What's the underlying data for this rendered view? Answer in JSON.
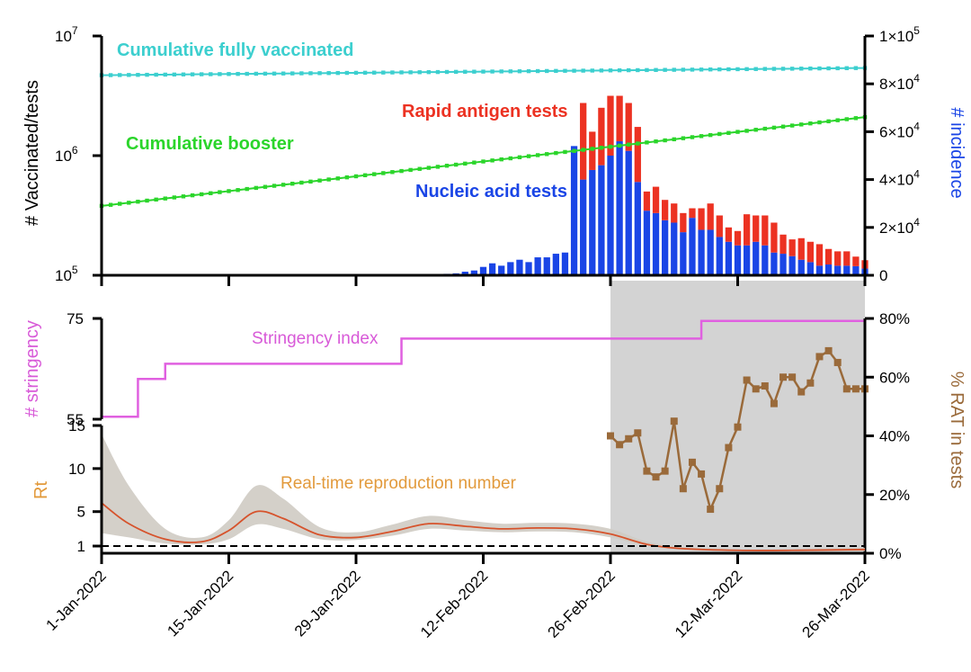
{
  "chart_data": [
    {
      "type": "bar",
      "panel": "top",
      "ylabel_left": "# Vaccinated/tests",
      "ylabel_right": "# incidence",
      "left_axis": {
        "scale": "log",
        "range": [
          100000,
          10000000
        ],
        "ticks": [
          "10^7",
          "10^6",
          "10^5"
        ]
      },
      "right_axis": {
        "scale": "linear",
        "range": [
          0,
          100000
        ],
        "ticks": [
          "1×10^5",
          "8×10^4",
          "6×10^4",
          "4×10^4",
          "2×10^4",
          "0"
        ]
      },
      "annotations": {
        "fully_vaccinated": "Cumulative fully vaccinated",
        "booster": "Cumulative booster",
        "rat": "Rapid antigen tests",
        "nat": "Nucleic acid tests"
      },
      "colors": {
        "fully_vaccinated": "#3ccfcf",
        "booster": "#2bd52b",
        "rat": "#ec3222",
        "nat": "#1a45e6"
      },
      "fully_vaccinated": {
        "start": 4700000,
        "end": 5400000
      },
      "booster": {
        "start": 380000,
        "end": 2100000
      },
      "bar_dates": [
        "2022-02-05",
        "2022-02-06",
        "2022-02-07",
        "2022-02-08",
        "2022-02-09",
        "2022-02-10",
        "2022-02-11",
        "2022-02-12",
        "2022-02-13",
        "2022-02-14",
        "2022-02-15",
        "2022-02-16",
        "2022-02-17",
        "2022-02-18",
        "2022-02-19",
        "2022-02-20",
        "2022-02-21",
        "2022-02-22",
        "2022-02-23",
        "2022-02-24",
        "2022-02-25",
        "2022-02-26",
        "2022-02-27",
        "2022-02-28",
        "2022-03-01",
        "2022-03-02",
        "2022-03-03",
        "2022-03-04",
        "2022-03-05",
        "2022-03-06",
        "2022-03-07",
        "2022-03-08",
        "2022-03-09",
        "2022-03-10",
        "2022-03-11",
        "2022-03-12",
        "2022-03-13",
        "2022-03-14",
        "2022-03-15",
        "2022-03-16",
        "2022-03-17",
        "2022-03-18",
        "2022-03-19",
        "2022-03-20",
        "2022-03-21",
        "2022-03-22",
        "2022-03-23",
        "2022-03-24",
        "2022-03-25",
        "2022-03-26"
      ],
      "nucleic_acid_tests": [
        300,
        400,
        500,
        600,
        800,
        1500,
        2000,
        3500,
        5000,
        4000,
        5500,
        6500,
        5500,
        7500,
        7500,
        9000,
        9500,
        54000,
        40000,
        44000,
        46000,
        50000,
        56000,
        52000,
        39000,
        27000,
        26000,
        23000,
        22000,
        18000,
        24000,
        19000,
        19000,
        16000,
        14000,
        12500,
        12500,
        14000,
        12500,
        9500,
        9000,
        8000,
        6500,
        5500,
        4000,
        4500,
        4000,
        4000,
        3800,
        2800
      ],
      "rapid_antigen_tests": [
        0,
        0,
        0,
        0,
        0,
        0,
        0,
        0,
        0,
        0,
        0,
        0,
        0,
        0,
        0,
        0,
        0,
        0,
        32000,
        16000,
        24000,
        25000,
        19000,
        20000,
        23000,
        8000,
        11000,
        8500,
        8000,
        8000,
        4000,
        9000,
        11000,
        9000,
        6000,
        6000,
        13000,
        11000,
        12500,
        12500,
        8000,
        7000,
        9000,
        8500,
        9000,
        6500,
        6000,
        6000,
        4000,
        3500
      ]
    },
    {
      "type": "line",
      "panel": "middle",
      "ylabel_left": "# stringency",
      "ylabel_right": "% RAT in tests",
      "stringency_axis": {
        "range": [
          55,
          75
        ],
        "ticks": [
          "75",
          "55"
        ]
      },
      "rat_axis": {
        "range": [
          0,
          80
        ],
        "ticks": [
          "80%",
          "60%",
          "40%",
          "20%",
          "0%"
        ]
      },
      "stringency_label": "Stringency index",
      "stringency_color": "#e060e0",
      "stringency_steps": [
        {
          "date": "2022-01-01",
          "value": 55.5
        },
        {
          "date": "2022-01-05",
          "value": 63
        },
        {
          "date": "2022-01-08",
          "value": 66
        },
        {
          "date": "2022-02-03",
          "value": 71
        },
        {
          "date": "2022-03-08",
          "value": 74.5
        },
        {
          "date": "2022-03-26",
          "value": 74.5
        }
      ],
      "rat_percent_color": "#9a6a3a",
      "rat_percent": [
        {
          "date": "2022-02-26",
          "value": 40
        },
        {
          "date": "2022-02-27",
          "value": 37
        },
        {
          "date": "2022-02-28",
          "value": 39
        },
        {
          "date": "2022-03-01",
          "value": 41
        },
        {
          "date": "2022-03-02",
          "value": 28
        },
        {
          "date": "2022-03-03",
          "value": 26
        },
        {
          "date": "2022-03-04",
          "value": 28
        },
        {
          "date": "2022-03-05",
          "value": 45
        },
        {
          "date": "2022-03-06",
          "value": 22
        },
        {
          "date": "2022-03-07",
          "value": 31
        },
        {
          "date": "2022-03-08",
          "value": 27
        },
        {
          "date": "2022-03-09",
          "value": 15
        },
        {
          "date": "2022-03-10",
          "value": 22
        },
        {
          "date": "2022-03-11",
          "value": 36
        },
        {
          "date": "2022-03-12",
          "value": 43
        },
        {
          "date": "2022-03-13",
          "value": 59
        },
        {
          "date": "2022-03-14",
          "value": 56
        },
        {
          "date": "2022-03-15",
          "value": 57
        },
        {
          "date": "2022-03-16",
          "value": 51
        },
        {
          "date": "2022-03-17",
          "value": 60
        },
        {
          "date": "2022-03-18",
          "value": 60
        },
        {
          "date": "2022-03-19",
          "value": 55
        },
        {
          "date": "2022-03-20",
          "value": 58
        },
        {
          "date": "2022-03-21",
          "value": 67
        },
        {
          "date": "2022-03-22",
          "value": 69
        },
        {
          "date": "2022-03-23",
          "value": 65
        },
        {
          "date": "2022-03-24",
          "value": 56
        },
        {
          "date": "2022-03-25",
          "value": 56
        },
        {
          "date": "2022-03-26",
          "value": 56
        }
      ]
    },
    {
      "type": "area",
      "panel": "bottom",
      "ylabel": "Rt",
      "axis": {
        "range": [
          0,
          15
        ],
        "ticks": [
          "15",
          "10",
          "5",
          "1"
        ]
      },
      "label": "Real-time reproduction number",
      "line_color": "#d6532c",
      "band_color": "#cfcbc3",
      "threshold": 1,
      "rt": [
        {
          "date": "2022-01-01",
          "value": 6.0,
          "lower": 2.5,
          "upper": 14.0
        },
        {
          "date": "2022-01-04",
          "value": 3.6,
          "lower": 2.0,
          "upper": 8.0
        },
        {
          "date": "2022-01-08",
          "value": 1.8,
          "lower": 1.3,
          "upper": 3.0
        },
        {
          "date": "2022-01-12",
          "value": 1.5,
          "lower": 1.2,
          "upper": 2.0
        },
        {
          "date": "2022-01-15",
          "value": 2.8,
          "lower": 1.8,
          "upper": 4.0
        },
        {
          "date": "2022-01-18",
          "value": 5.0,
          "lower": 3.5,
          "upper": 8.0
        },
        {
          "date": "2022-01-21",
          "value": 4.2,
          "lower": 3.0,
          "upper": 6.5
        },
        {
          "date": "2022-01-25",
          "value": 2.3,
          "lower": 1.8,
          "upper": 3.2
        },
        {
          "date": "2022-01-29",
          "value": 2.0,
          "lower": 1.7,
          "upper": 2.6
        },
        {
          "date": "2022-02-02",
          "value": 2.7,
          "lower": 2.2,
          "upper": 3.5
        },
        {
          "date": "2022-02-06",
          "value": 3.6,
          "lower": 3.0,
          "upper": 4.5
        },
        {
          "date": "2022-02-10",
          "value": 3.3,
          "lower": 2.8,
          "upper": 4.0
        },
        {
          "date": "2022-02-14",
          "value": 3.0,
          "lower": 2.6,
          "upper": 3.6
        },
        {
          "date": "2022-02-18",
          "value": 3.1,
          "lower": 2.7,
          "upper": 3.7
        },
        {
          "date": "2022-02-22",
          "value": 3.0,
          "lower": 2.6,
          "upper": 3.6
        },
        {
          "date": "2022-02-26",
          "value": 2.4,
          "lower": 2.0,
          "upper": 3.0
        },
        {
          "date": "2022-03-02",
          "value": 1.2,
          "lower": 1.0,
          "upper": 1.5
        },
        {
          "date": "2022-03-06",
          "value": 0.7,
          "lower": 0.6,
          "upper": 0.9
        },
        {
          "date": "2022-03-12",
          "value": 0.5,
          "lower": 0.4,
          "upper": 0.6
        },
        {
          "date": "2022-03-18",
          "value": 0.5,
          "lower": 0.4,
          "upper": 0.6
        },
        {
          "date": "2022-03-26",
          "value": 0.6,
          "lower": 0.4,
          "upper": 0.8
        }
      ]
    }
  ],
  "x_axis": {
    "ticks": [
      "1-Jan-2022",
      "15-Jan-2022",
      "29-Jan-2022",
      "12-Feb-2022",
      "26-Feb-2022",
      "12-Mar-2022",
      "26-Mar-2022"
    ],
    "range": [
      "2022-01-01",
      "2022-03-26"
    ]
  },
  "shaded_period": {
    "start": "2022-02-26",
    "end": "2022-03-26",
    "color": "#d3d3d3"
  }
}
